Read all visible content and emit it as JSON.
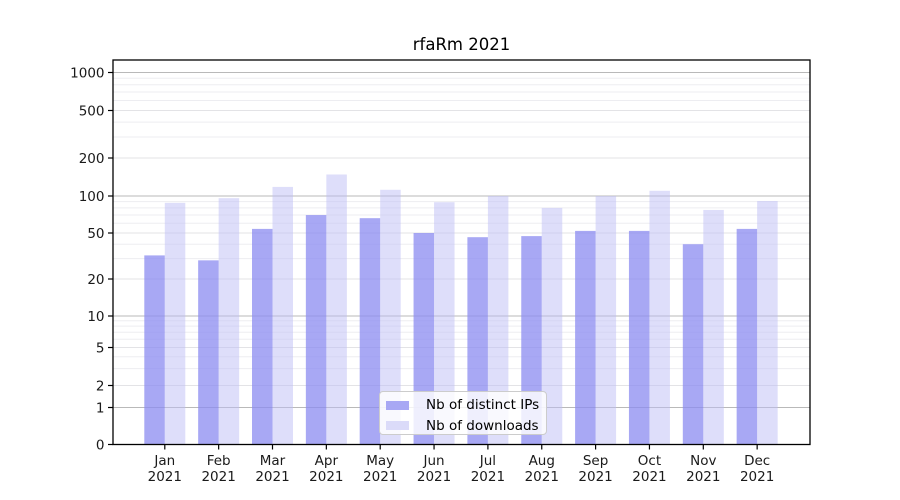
{
  "chart_data": {
    "type": "bar",
    "title": "rfaRm 2021",
    "months": [
      "Jan",
      "Feb",
      "Mar",
      "Apr",
      "May",
      "Jun",
      "Jul",
      "Aug",
      "Sep",
      "Oct",
      "Nov",
      "Dec"
    ],
    "year_label": "2021",
    "categories": [
      "Jan 2021",
      "Feb 2021",
      "Mar 2021",
      "Apr 2021",
      "May 2021",
      "Jun 2021",
      "Jul 2021",
      "Aug 2021",
      "Sep 2021",
      "Oct 2021",
      "Nov 2021",
      "Dec 2021"
    ],
    "series": [
      {
        "name": "Nb of distinct IPs",
        "color": "rgba(140,140,240,0.76)",
        "color_hex_on_white": "#a8a8f4",
        "values": [
          32,
          29,
          54,
          70,
          66,
          50,
          46,
          47,
          52,
          52,
          40,
          54
        ]
      },
      {
        "name": "Nb of downloads",
        "color": "rgba(190,190,245,0.5)",
        "color_hex_on_white": "#dbdbf9",
        "values": [
          88,
          96,
          118,
          148,
          112,
          89,
          100,
          80,
          100,
          110,
          77,
          91
        ]
      }
    ],
    "xlabel": "",
    "ylabel": "",
    "yscale": "symlog",
    "ylim": [
      0,
      1250
    ],
    "yticks": [
      0,
      1,
      2,
      5,
      10,
      20,
      50,
      100,
      200,
      500,
      1000
    ],
    "y_minor_gridlines": [
      3,
      4,
      6,
      7,
      8,
      9,
      30,
      40,
      60,
      70,
      80,
      90,
      300,
      400,
      600,
      700,
      800,
      900
    ],
    "grid": true,
    "legend_position": "lower center",
    "colors": {
      "axis": "#000000",
      "tick_text": "#1a1a1a",
      "grid_major_power10": "#b9b9b9",
      "grid_major_other": "#e3e3e6",
      "grid_minor": "#ededf1"
    }
  }
}
